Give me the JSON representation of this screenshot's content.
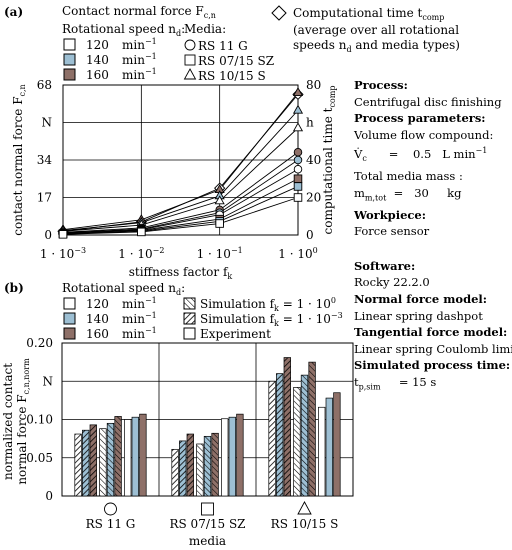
{
  "panel_a": {
    "label": "(a)",
    "legend": {
      "title": "Contact  normal force F",
      "title_sub": "c,n",
      "speed_title": "Rotational speed n",
      "speed_title_sub": "d",
      "speed_title_end": ":",
      "speeds": [
        {
          "value": "120",
          "unit": "min",
          "exp": "−1",
          "fill": "#ffffff"
        },
        {
          "value": "140",
          "unit": "min",
          "exp": "−1",
          "fill": "#9dbfd3"
        },
        {
          "value": "160",
          "unit": "min",
          "exp": "−1",
          "fill": "#8e7068"
        }
      ],
      "media_title": "Media:",
      "media": [
        {
          "marker": "circle",
          "label": "RS 11 G"
        },
        {
          "marker": "square",
          "label": "RS 07/15 SZ"
        },
        {
          "marker": "triangle",
          "label": "RS 10/15 S"
        }
      ],
      "comp_time_label": "Computational time t",
      "comp_time_sub": "comp",
      "comp_time_note1": "(average over all rotational",
      "comp_time_note2": "speeds n",
      "comp_time_note2_sub": "d",
      "comp_time_note2_end": " and media types)"
    }
  },
  "panel_b": {
    "label": "(b)",
    "legend": {
      "speed_title": "Rotational speed n",
      "speed_title_sub": "d",
      "speed_title_end": ":",
      "speeds": [
        {
          "value": "120",
          "unit": "min",
          "exp": "−1",
          "fill": "#ffffff"
        },
        {
          "value": "140",
          "unit": "min",
          "exp": "−1",
          "fill": "#9dbfd3"
        },
        {
          "value": "160",
          "unit": "min",
          "exp": "−1",
          "fill": "#8e7068"
        }
      ],
      "sim1": "Simulation f",
      "sim1_sub": "k",
      "sim1_val": " = 1 · 10",
      "sim1_exp": "0",
      "sim2": "Simulation f",
      "sim2_sub": "k",
      "sim2_val": " = 1 · 10",
      "sim2_exp": "−3",
      "experiment": "Experiment"
    }
  },
  "sidebar": {
    "process_h": "Process:",
    "process": "Centrifugal disc finishing",
    "params_h": "Process parameters:",
    "flow_label": "Volume flow compound:",
    "flow_sym": "V̇",
    "flow_sym_sub": "c",
    "flow_val": "      =    0.5   L min",
    "flow_exp": "−1",
    "mass_label": "Total media mass :",
    "mass_sym": "m",
    "mass_sym_sub": "m,tot",
    "mass_val": "  =   30     kg",
    "workpiece_h": "Workpiece:",
    "workpiece": "Force sensor",
    "software_h": "Software:",
    "software": "Rocky 22.2.0",
    "nfm_h": "Normal force model:",
    "nfm": "Linear spring dashpot",
    "tfm_h": "Tangential force model:",
    "tfm": "Linear spring Coulomb limit",
    "spt_h": "Simulated process time:",
    "spt_sym": "t",
    "spt_sym_sub": "p,sim",
    "spt_val": "     = 15 s"
  },
  "chart_data": [
    {
      "type": "line",
      "panel": "(a)",
      "xlabel": "stiffness factor f",
      "xlabel_sub": "k",
      "ylabel": "contact  normal force F",
      "ylabel_sub": "c,n",
      "y2label": "computational time t",
      "y2label_sub": "comp",
      "x": [
        0.001,
        0.01,
        0.1,
        1
      ],
      "x_scale": "log",
      "x_ticks": [
        {
          "base": "1 · 10",
          "exp": "−3"
        },
        {
          "base": "1 · 10",
          "exp": "−2"
        },
        {
          "base": "1 · 10",
          "exp": "−1"
        },
        {
          "base": "1 · 10",
          "exp": "0"
        }
      ],
      "ylim": [
        0,
        68
      ],
      "y_ticks": [
        "0",
        "17",
        "34",
        "N",
        "68"
      ],
      "y_tick_values": [
        0,
        17,
        34,
        51,
        68
      ],
      "y2lim": [
        0,
        80
      ],
      "y2_ticks": [
        "0",
        "20",
        "40",
        "h",
        "80"
      ],
      "y2_tick_values": [
        0,
        20,
        40,
        60,
        80
      ],
      "grid": true,
      "series": [
        {
          "name": "Computational time t comp",
          "marker": "diamond",
          "fill": "#ffffff",
          "axis": "right",
          "values": [
            2,
            7,
            25,
            75
          ]
        },
        {
          "marker": "triangle",
          "fill": "#8e7068",
          "values": [
            2.4,
            6.9,
            20.5,
            64.5
          ]
        },
        {
          "marker": "triangle",
          "fill": "#9dbfd3",
          "values": [
            2.0,
            5.6,
            17.7,
            56.5
          ]
        },
        {
          "marker": "triangle",
          "fill": "#ffffff",
          "values": [
            1.7,
            4.5,
            15.4,
            48.5
          ]
        },
        {
          "marker": "circle",
          "fill": "#8e7068",
          "values": [
            1.2,
            3.2,
            11.4,
            37.5
          ]
        },
        {
          "marker": "circle",
          "fill": "#9dbfd3",
          "values": [
            1.0,
            2.7,
            10.1,
            34.0
          ]
        },
        {
          "marker": "circle",
          "fill": "#ffffff",
          "values": [
            0.8,
            2.4,
            9.2,
            29.8
          ]
        },
        {
          "marker": "square",
          "fill": "#8e7068",
          "values": [
            0.6,
            2.1,
            7.2,
            25.5
          ]
        },
        {
          "marker": "square",
          "fill": "#9dbfd3",
          "values": [
            0.45,
            1.7,
            6.2,
            22.0
          ]
        },
        {
          "marker": "square",
          "fill": "#ffffff",
          "values": [
            0.3,
            1.4,
            5.2,
            17.0
          ]
        }
      ]
    },
    {
      "type": "bar",
      "panel": "(b)",
      "xlabel": "media",
      "ylabel": "normalized contact",
      "ylabel2": "normal force F",
      "ylabel2_sub": "c,n,norm",
      "categories": [
        "RS 11 G",
        "RS 07/15 SZ",
        "RS 10/15 S"
      ],
      "category_markers": [
        "circle",
        "square",
        "triangle"
      ],
      "ylim": [
        0,
        0.2
      ],
      "y_ticks": [
        "0",
        "0.05",
        "0.10",
        "N",
        "0.20"
      ],
      "y_tick_values": [
        0,
        0.05,
        0.1,
        0.15,
        0.2
      ],
      "grid": true,
      "series": [
        {
          "group": "sim_fk_1e-3",
          "speed": "120",
          "fill": "#ffffff",
          "pattern": "hatch-back",
          "values": [
            0.081,
            0.061,
            0.15
          ]
        },
        {
          "group": "sim_fk_1e-3",
          "speed": "140",
          "fill": "#9dbfd3",
          "pattern": "hatch-back",
          "values": [
            0.086,
            0.072,
            0.16
          ]
        },
        {
          "group": "sim_fk_1e-3",
          "speed": "160",
          "fill": "#8e7068",
          "pattern": "hatch-back",
          "values": [
            0.093,
            0.081,
            0.181
          ]
        },
        {
          "group": "sim_fk_1e0",
          "speed": "120",
          "fill": "#ffffff",
          "pattern": "hatch-fwd",
          "values": [
            0.088,
            0.068,
            0.142
          ]
        },
        {
          "group": "sim_fk_1e0",
          "speed": "140",
          "fill": "#9dbfd3",
          "pattern": "hatch-fwd",
          "values": [
            0.095,
            0.078,
            0.158
          ]
        },
        {
          "group": "sim_fk_1e0",
          "speed": "160",
          "fill": "#8e7068",
          "pattern": "hatch-fwd",
          "values": [
            0.104,
            0.082,
            0.175
          ]
        },
        {
          "group": "experiment",
          "speed": "120",
          "fill": "#ffffff",
          "pattern": "solid",
          "values": [
            0.1,
            0.101,
            0.116
          ]
        },
        {
          "group": "experiment",
          "speed": "140",
          "fill": "#9dbfd3",
          "pattern": "solid",
          "values": [
            0.103,
            0.103,
            0.128
          ]
        },
        {
          "group": "experiment",
          "speed": "160",
          "fill": "#8e7068",
          "pattern": "solid",
          "values": [
            0.107,
            0.107,
            0.135
          ]
        }
      ]
    }
  ]
}
